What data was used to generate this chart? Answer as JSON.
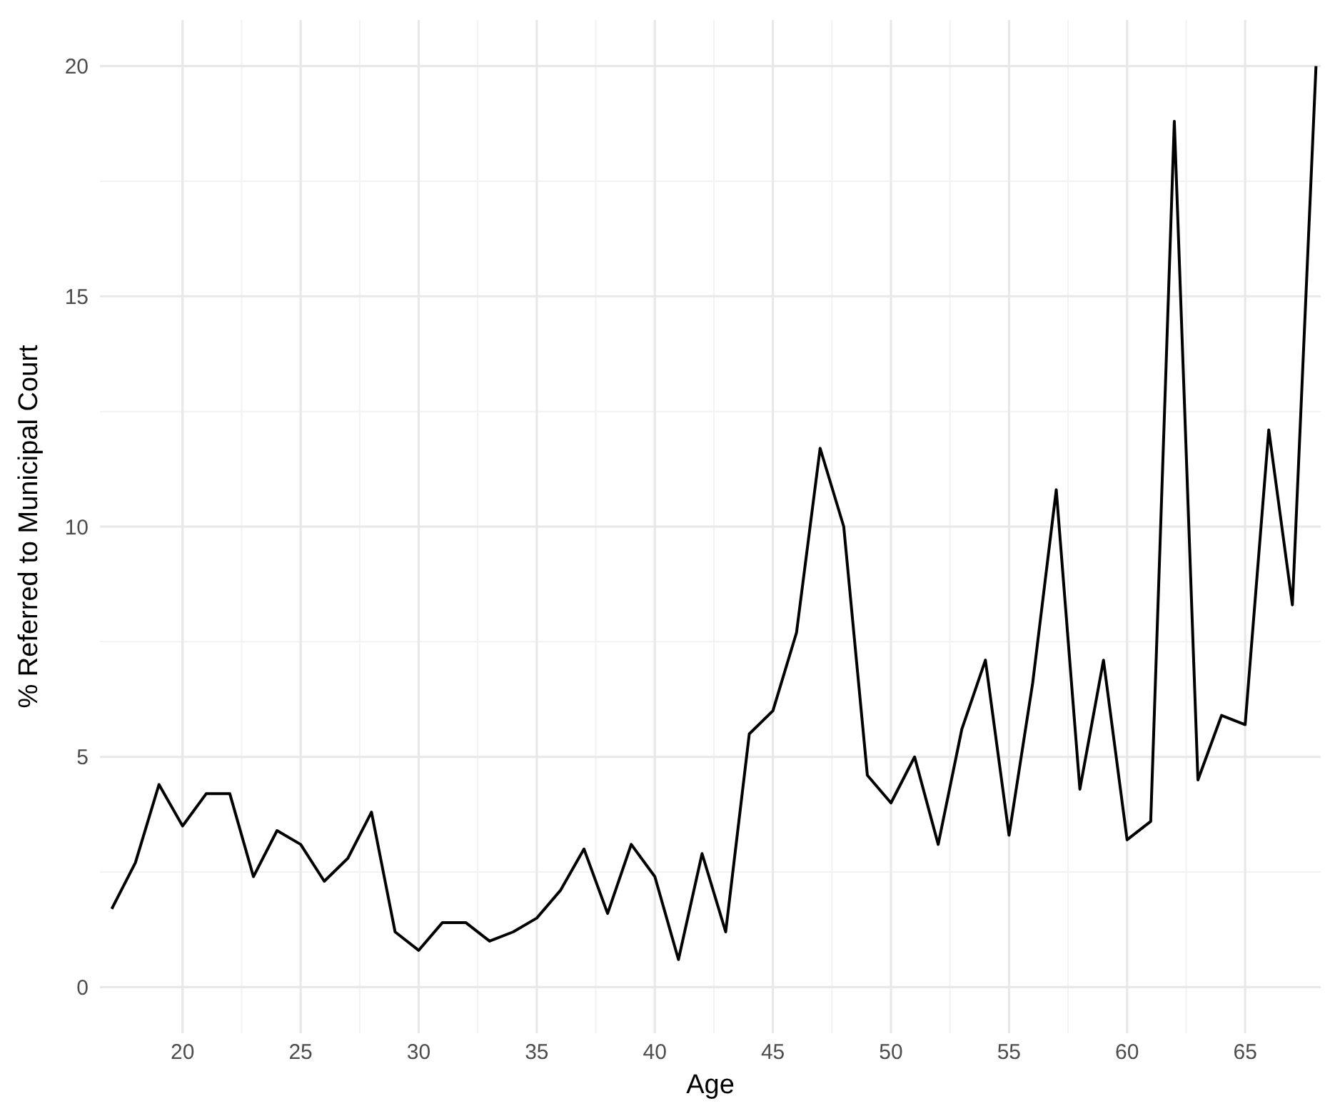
{
  "chart_data": {
    "type": "line",
    "xlabel": "Age",
    "ylabel": "% Referred to Municipal Court",
    "x": [
      17,
      18,
      19,
      20,
      21,
      22,
      23,
      24,
      25,
      26,
      27,
      28,
      29,
      30,
      31,
      32,
      33,
      34,
      35,
      36,
      37,
      38,
      39,
      40,
      41,
      42,
      43,
      44,
      45,
      46,
      47,
      48,
      49,
      50,
      51,
      52,
      53,
      54,
      55,
      56,
      57,
      58,
      59,
      60,
      61,
      62,
      63,
      64,
      65,
      66,
      67,
      68
    ],
    "series": [
      {
        "color": "#000000",
        "values": [
          1.7,
          2.7,
          4.4,
          3.5,
          4.2,
          4.2,
          2.4,
          3.4,
          3.1,
          2.3,
          2.8,
          3.8,
          1.2,
          0.8,
          1.4,
          1.4,
          1.0,
          1.2,
          1.5,
          2.1,
          3.0,
          1.6,
          3.1,
          2.4,
          0.6,
          2.9,
          1.2,
          5.5,
          6.0,
          7.7,
          11.7,
          10.0,
          4.6,
          4.0,
          5.0,
          3.1,
          5.6,
          7.1,
          3.3,
          6.6,
          10.8,
          4.3,
          7.1,
          3.2,
          3.6,
          18.8,
          4.5,
          5.9,
          5.7,
          12.1,
          8.3,
          20.0
        ]
      }
    ],
    "xlim": [
      16.5,
      68.2
    ],
    "ylim": [
      -1,
      21
    ],
    "xticks": [
      20,
      25,
      30,
      35,
      40,
      45,
      50,
      55,
      60,
      65
    ],
    "yticks": [
      0,
      5,
      10,
      15,
      20
    ],
    "grid": true,
    "marker": "none",
    "line_style": "solid"
  }
}
